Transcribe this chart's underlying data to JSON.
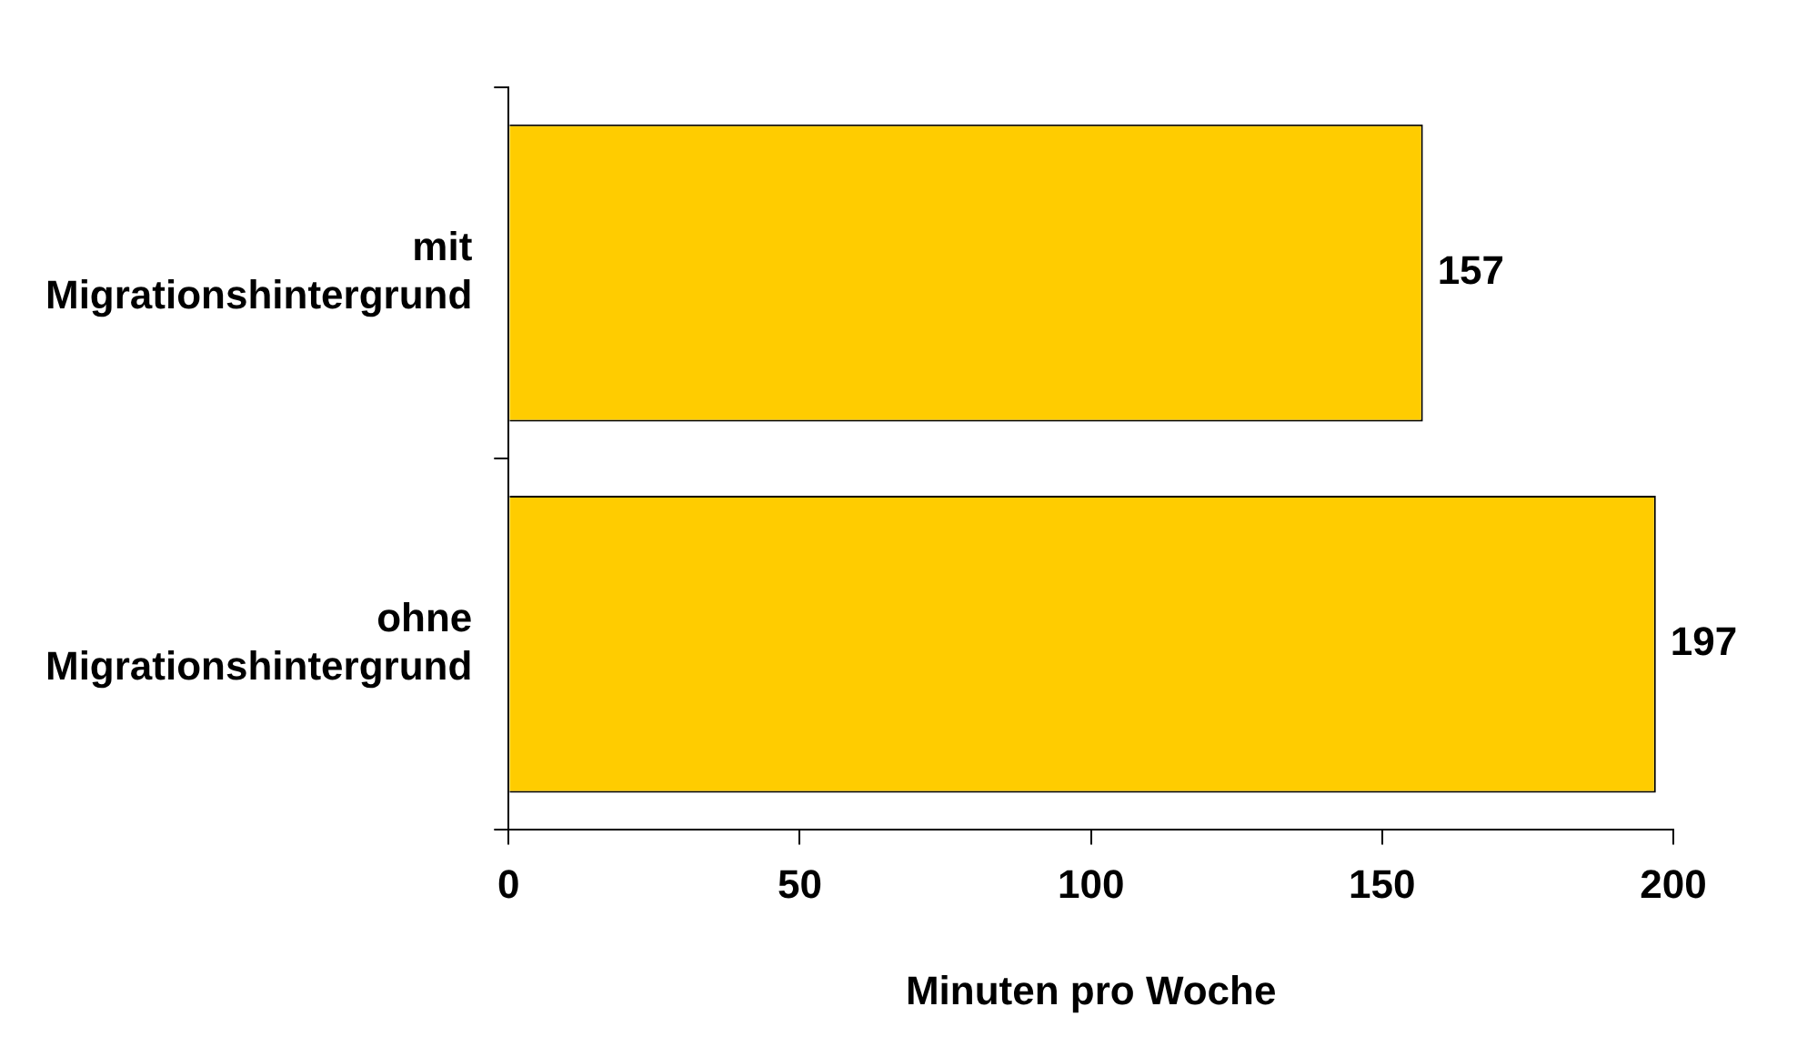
{
  "chart_data": {
    "type": "bar",
    "orientation": "horizontal",
    "categories": [
      "mit Migrationshintergrund",
      "ohne Migrationshintergrund"
    ],
    "values": [
      157,
      197
    ],
    "color": "#ffcc00",
    "xlim": [
      0,
      200
    ],
    "xticks": [
      0,
      50,
      100,
      150,
      200
    ],
    "xlabel": "Minuten pro Woche",
    "data_labels": true,
    "grid": false,
    "legend": false
  }
}
